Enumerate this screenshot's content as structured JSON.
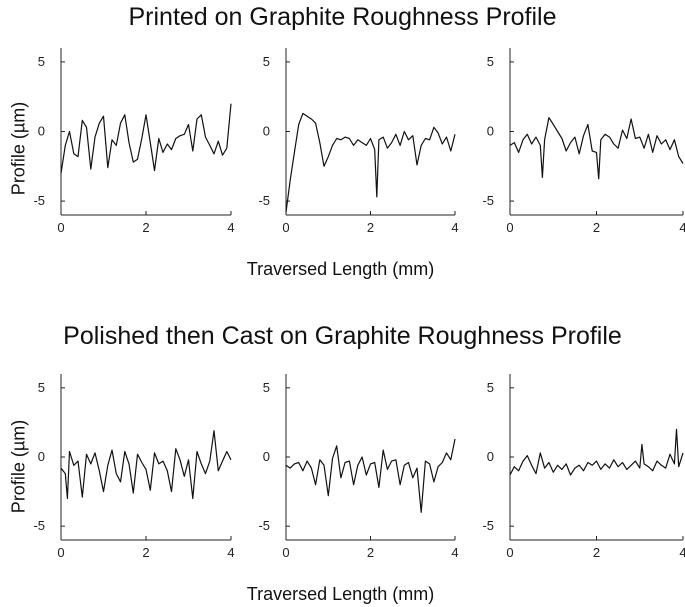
{
  "top_section": {
    "title": "Printed on Graphite Roughness Profile",
    "ylabel": "Profile (µm)",
    "xlabel": "Traversed Length (mm)"
  },
  "bottom_section": {
    "title": "Polished then Cast on Graphite Roughness Profile",
    "ylabel": "Profile (µm)",
    "xlabel": "Traversed Length (mm)"
  },
  "chart_data": [
    {
      "type": "line",
      "group": "Printed on Graphite Roughness Profile",
      "panel": 1,
      "xlim": [
        0,
        4
      ],
      "ylim": [
        -6,
        6
      ],
      "xticks": [
        0,
        2,
        4
      ],
      "yticks": [
        -5,
        0,
        5
      ],
      "x": [
        0,
        0.1,
        0.2,
        0.3,
        0.4,
        0.5,
        0.6,
        0.7,
        0.8,
        0.9,
        1.0,
        1.1,
        1.2,
        1.3,
        1.4,
        1.5,
        1.6,
        1.7,
        1.8,
        1.9,
        2.0,
        2.1,
        2.2,
        2.3,
        2.4,
        2.5,
        2.6,
        2.7,
        2.8,
        2.9,
        3.0,
        3.1,
        3.2,
        3.3,
        3.4,
        3.5,
        3.6,
        3.7,
        3.8,
        3.9,
        4.0
      ],
      "y": [
        -3.0,
        -1.0,
        0.0,
        -1.6,
        -1.8,
        0.8,
        0.3,
        -2.7,
        -0.4,
        0.6,
        1.1,
        -2.6,
        -0.6,
        -1.0,
        0.6,
        1.2,
        -0.8,
        -2.2,
        -2.0,
        -0.5,
        1.2,
        -0.8,
        -2.8,
        -0.5,
        -1.5,
        -0.9,
        -1.3,
        -0.5,
        -0.3,
        -0.2,
        0.5,
        -1.4,
        0.9,
        1.2,
        -0.4,
        -1.0,
        -1.6,
        -0.7,
        -1.7,
        -1.2,
        2.0
      ]
    },
    {
      "type": "line",
      "group": "Printed on Graphite Roughness Profile",
      "panel": 2,
      "xlim": [
        0,
        4
      ],
      "ylim": [
        -6,
        6
      ],
      "xticks": [
        0,
        2,
        4
      ],
      "yticks": [
        -5,
        0,
        5
      ],
      "x": [
        0,
        0.1,
        0.2,
        0.3,
        0.4,
        0.5,
        0.6,
        0.7,
        0.8,
        0.9,
        1.0,
        1.1,
        1.2,
        1.3,
        1.4,
        1.5,
        1.6,
        1.7,
        1.8,
        1.9,
        2.0,
        2.1,
        2.15,
        2.2,
        2.3,
        2.4,
        2.5,
        2.6,
        2.7,
        2.8,
        2.9,
        3.0,
        3.1,
        3.2,
        3.3,
        3.4,
        3.5,
        3.6,
        3.7,
        3.8,
        3.9,
        4.0
      ],
      "y": [
        -5.8,
        -3.5,
        -1.5,
        0.5,
        1.3,
        1.1,
        0.9,
        0.6,
        -0.8,
        -2.5,
        -1.8,
        -1.0,
        -0.5,
        -0.6,
        -0.4,
        -0.5,
        -1.0,
        -0.6,
        -0.8,
        -1.0,
        -0.5,
        -1.3,
        -4.7,
        -0.6,
        -0.4,
        -1.2,
        -0.8,
        -0.2,
        -1.0,
        0.0,
        -0.6,
        -0.3,
        -2.4,
        -1.0,
        -0.5,
        -0.6,
        0.3,
        -0.1,
        -0.9,
        -0.4,
        -1.4,
        -0.2
      ]
    },
    {
      "type": "line",
      "group": "Printed on Graphite Roughness Profile",
      "panel": 3,
      "xlim": [
        0,
        4
      ],
      "ylim": [
        -6,
        6
      ],
      "xticks": [
        0,
        2,
        4
      ],
      "yticks": [
        -5,
        0,
        5
      ],
      "x": [
        0,
        0.1,
        0.2,
        0.3,
        0.4,
        0.5,
        0.6,
        0.7,
        0.75,
        0.8,
        0.9,
        1.0,
        1.1,
        1.2,
        1.3,
        1.4,
        1.5,
        1.6,
        1.7,
        1.8,
        1.9,
        2.0,
        2.05,
        2.1,
        2.2,
        2.3,
        2.4,
        2.5,
        2.6,
        2.7,
        2.8,
        2.9,
        3.0,
        3.1,
        3.2,
        3.3,
        3.4,
        3.5,
        3.6,
        3.7,
        3.8,
        3.9,
        4.0
      ],
      "y": [
        -1.0,
        -0.8,
        -1.5,
        -0.6,
        -0.2,
        -0.9,
        -0.4,
        -1.0,
        -3.3,
        -0.6,
        1.0,
        0.5,
        0.0,
        -0.5,
        -1.4,
        -0.8,
        -0.4,
        -1.6,
        -0.3,
        0.5,
        -1.4,
        -1.5,
        -3.4,
        -0.6,
        -0.2,
        -0.4,
        -0.9,
        -1.2,
        0.1,
        -0.5,
        0.9,
        -0.5,
        -0.4,
        -1.2,
        -0.2,
        -1.5,
        -0.3,
        -0.9,
        -0.6,
        -1.3,
        -0.6,
        -1.8,
        -2.3
      ]
    },
    {
      "type": "line",
      "group": "Polished then Cast on Graphite Roughness Profile",
      "panel": 1,
      "xlim": [
        0,
        4
      ],
      "ylim": [
        -6,
        6
      ],
      "xticks": [
        0,
        2,
        4
      ],
      "yticks": [
        -5,
        0,
        5
      ],
      "x": [
        0,
        0.1,
        0.15,
        0.2,
        0.3,
        0.4,
        0.5,
        0.6,
        0.7,
        0.8,
        0.9,
        1.0,
        1.1,
        1.2,
        1.3,
        1.4,
        1.5,
        1.6,
        1.7,
        1.8,
        1.9,
        2.0,
        2.1,
        2.2,
        2.3,
        2.4,
        2.5,
        2.6,
        2.7,
        2.8,
        2.9,
        3.0,
        3.1,
        3.2,
        3.3,
        3.4,
        3.5,
        3.6,
        3.7,
        3.8,
        3.9,
        4.0
      ],
      "y": [
        -0.8,
        -1.2,
        -3.0,
        0.4,
        -0.6,
        -0.3,
        -2.9,
        0.2,
        -0.5,
        0.3,
        -1.0,
        -2.5,
        -0.6,
        0.5,
        -1.2,
        -1.8,
        0.4,
        -0.5,
        -2.6,
        0.2,
        -0.4,
        -0.9,
        -2.4,
        0.3,
        -0.5,
        -0.3,
        -1.0,
        -2.5,
        0.6,
        -0.2,
        -1.4,
        -0.2,
        -3.0,
        0.4,
        -0.5,
        -1.2,
        -0.3,
        1.9,
        -1.0,
        -0.3,
        0.4,
        -0.2
      ]
    },
    {
      "type": "line",
      "group": "Polished then Cast on Graphite Roughness Profile",
      "panel": 2,
      "xlim": [
        0,
        4
      ],
      "ylim": [
        -6,
        6
      ],
      "xticks": [
        0,
        2,
        4
      ],
      "yticks": [
        -5,
        0,
        5
      ],
      "x": [
        0,
        0.1,
        0.2,
        0.3,
        0.4,
        0.5,
        0.6,
        0.7,
        0.8,
        0.9,
        1.0,
        1.1,
        1.2,
        1.3,
        1.4,
        1.5,
        1.6,
        1.7,
        1.8,
        1.9,
        2.0,
        2.1,
        2.2,
        2.3,
        2.4,
        2.5,
        2.6,
        2.7,
        2.8,
        2.9,
        3.0,
        3.1,
        3.2,
        3.3,
        3.4,
        3.5,
        3.6,
        3.7,
        3.8,
        3.9,
        4.0
      ],
      "y": [
        -0.6,
        -0.8,
        -0.5,
        -0.4,
        -1.0,
        -0.3,
        -0.8,
        -2.0,
        -0.2,
        -0.6,
        -2.8,
        -0.1,
        0.8,
        -1.5,
        -0.4,
        -0.3,
        -2.0,
        -0.6,
        0.0,
        -1.3,
        -0.5,
        -0.4,
        -2.2,
        0.5,
        -0.9,
        -0.3,
        -0.2,
        -2.0,
        -0.6,
        -0.4,
        -1.5,
        -0.8,
        -4.0,
        -0.3,
        -0.5,
        -1.8,
        -0.7,
        -0.4,
        0.3,
        -0.2,
        1.3
      ]
    },
    {
      "type": "line",
      "group": "Polished then Cast on Graphite Roughness Profile",
      "panel": 3,
      "xlim": [
        0,
        4
      ],
      "ylim": [
        -6,
        6
      ],
      "xticks": [
        0,
        2,
        4
      ],
      "yticks": [
        -5,
        0,
        5
      ],
      "x": [
        0,
        0.1,
        0.2,
        0.3,
        0.4,
        0.5,
        0.6,
        0.7,
        0.8,
        0.9,
        1.0,
        1.1,
        1.2,
        1.3,
        1.4,
        1.5,
        1.6,
        1.7,
        1.8,
        1.9,
        2.0,
        2.1,
        2.2,
        2.3,
        2.4,
        2.5,
        2.6,
        2.7,
        2.8,
        2.9,
        3.0,
        3.05,
        3.1,
        3.2,
        3.3,
        3.4,
        3.5,
        3.6,
        3.7,
        3.8,
        3.85,
        3.9,
        4.0
      ],
      "y": [
        -1.3,
        -0.7,
        -1.0,
        -0.3,
        0.1,
        -0.6,
        -1.2,
        0.3,
        -0.8,
        -0.4,
        -1.1,
        -0.6,
        -0.9,
        -0.5,
        -1.3,
        -0.8,
        -0.6,
        -1.0,
        -0.4,
        -0.6,
        -0.3,
        -0.9,
        -0.5,
        -0.8,
        -0.2,
        -0.7,
        -0.4,
        -0.9,
        -0.6,
        -0.3,
        -0.8,
        0.9,
        -0.5,
        -0.7,
        -1.0,
        -0.3,
        -0.6,
        -0.8,
        0.2,
        -0.5,
        2.0,
        -0.7,
        0.3
      ]
    }
  ]
}
